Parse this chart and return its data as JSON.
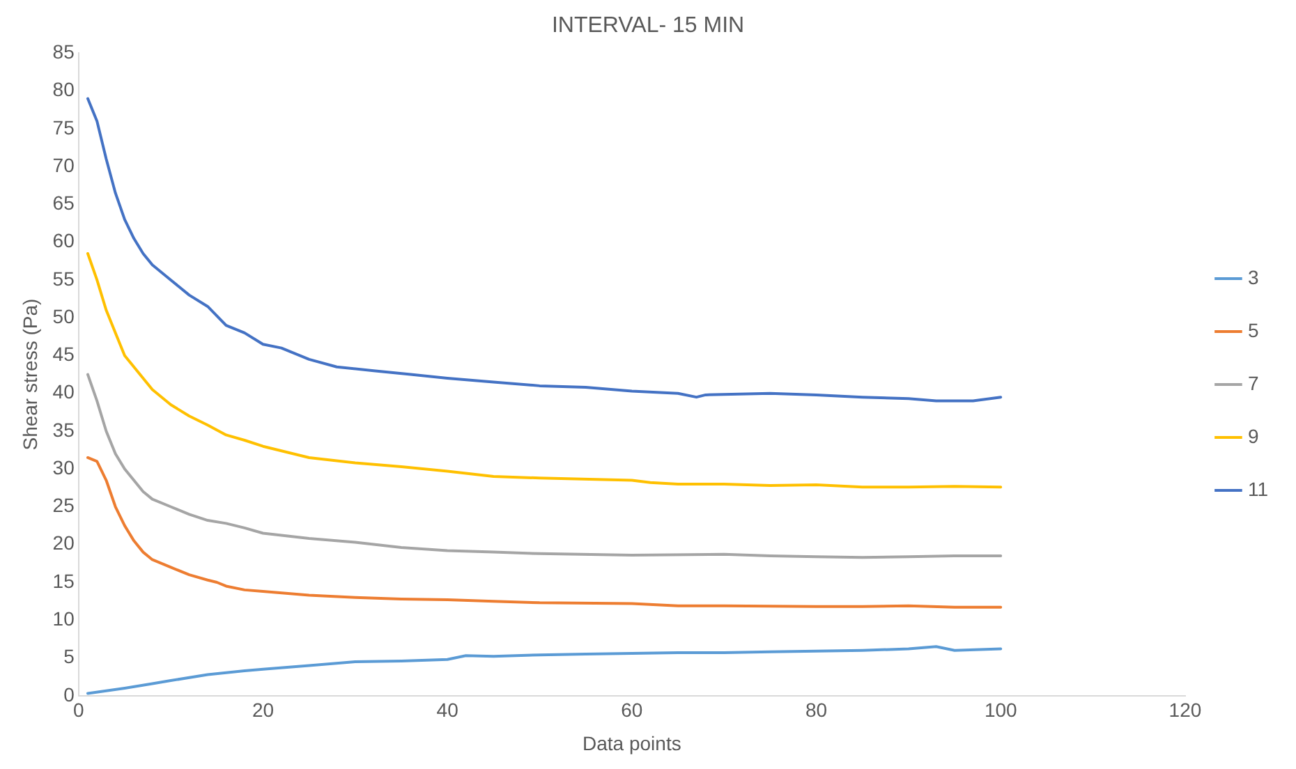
{
  "chart_data": {
    "type": "line",
    "title": "INTERVAL- 15 MIN",
    "xlabel": "Data points",
    "ylabel": "Shear stress (Pa)",
    "xlim": [
      0,
      120
    ],
    "xticks": [
      0,
      20,
      40,
      60,
      80,
      100,
      120
    ],
    "ylim": [
      0,
      85
    ],
    "yticks": [
      0,
      5,
      10,
      15,
      20,
      25,
      30,
      35,
      40,
      45,
      50,
      55,
      60,
      65,
      70,
      75,
      80,
      85
    ],
    "grid": false,
    "legend": "right",
    "marker": "none",
    "line_style": "solid",
    "series": [
      {
        "name": "3",
        "color": "#5b9bd5",
        "x": [
          1,
          5,
          8,
          10,
          14,
          18,
          20,
          25,
          30,
          35,
          40,
          42,
          45,
          50,
          55,
          60,
          65,
          70,
          75,
          80,
          85,
          90,
          93,
          95,
          100
        ],
        "values": [
          0.3,
          1,
          1.6,
          2,
          2.8,
          3.3,
          3.5,
          4,
          4.5,
          4.6,
          4.8,
          5.3,
          5.2,
          5.4,
          5.5,
          5.6,
          5.7,
          5.7,
          5.8,
          5.9,
          6,
          6.2,
          6.5,
          6,
          6.2
        ]
      },
      {
        "name": "5",
        "color": "#ed7d31",
        "x": [
          1,
          2,
          3,
          4,
          5,
          6,
          7,
          8,
          10,
          12,
          14,
          15,
          16,
          18,
          20,
          25,
          30,
          35,
          40,
          45,
          50,
          60,
          65,
          70,
          80,
          85,
          90,
          95,
          100
        ],
        "values": [
          31.5,
          31,
          28.5,
          25,
          22.5,
          20.5,
          19,
          18,
          17,
          16,
          15.3,
          15,
          14.5,
          14,
          13.8,
          13.3,
          13,
          12.8,
          12.7,
          12.5,
          12.3,
          12.2,
          11.9,
          11.9,
          11.8,
          11.8,
          11.9,
          11.7,
          11.7
        ]
      },
      {
        "name": "7",
        "color": "#a5a5a5",
        "x": [
          1,
          2,
          3,
          4,
          5,
          6,
          7,
          8,
          10,
          12,
          14,
          16,
          18,
          20,
          25,
          30,
          35,
          40,
          45,
          50,
          60,
          70,
          75,
          80,
          85,
          90,
          95,
          100
        ],
        "values": [
          42.5,
          39,
          35,
          32,
          30,
          28.5,
          27,
          26,
          25,
          24,
          23.2,
          22.8,
          22.2,
          21.5,
          20.8,
          20.3,
          19.6,
          19.2,
          19,
          18.8,
          18.6,
          18.7,
          18.5,
          18.4,
          18.3,
          18.4,
          18.5,
          18.5
        ]
      },
      {
        "name": "9",
        "color": "#ffc000",
        "x": [
          1,
          2,
          3,
          4,
          5,
          6,
          7,
          8,
          10,
          12,
          14,
          16,
          18,
          20,
          25,
          30,
          35,
          40,
          45,
          50,
          60,
          62,
          65,
          70,
          75,
          80,
          85,
          90,
          95,
          100
        ],
        "values": [
          58.5,
          55,
          51,
          48,
          45,
          43.5,
          42,
          40.5,
          38.5,
          37,
          35.8,
          34.5,
          33.8,
          33,
          31.5,
          30.8,
          30.3,
          29.7,
          29,
          28.8,
          28.5,
          28.2,
          28,
          28,
          27.8,
          27.9,
          27.6,
          27.6,
          27.7,
          27.6
        ]
      },
      {
        "name": "11",
        "color": "#4472c4",
        "x": [
          1,
          2,
          3,
          4,
          5,
          6,
          7,
          8,
          10,
          12,
          14,
          16,
          18,
          20,
          22,
          25,
          28,
          32,
          36,
          40,
          45,
          50,
          55,
          60,
          65,
          67,
          68,
          75,
          80,
          85,
          90,
          93,
          97,
          100
        ],
        "values": [
          79,
          76,
          71,
          66.5,
          63,
          60.5,
          58.5,
          57,
          55,
          53,
          51.5,
          49,
          48,
          46.5,
          46,
          44.5,
          43.5,
          43,
          42.5,
          42,
          41.5,
          41,
          40.8,
          40.3,
          40,
          39.5,
          39.8,
          40,
          39.8,
          39.5,
          39.3,
          39,
          39,
          39.5
        ]
      }
    ]
  }
}
